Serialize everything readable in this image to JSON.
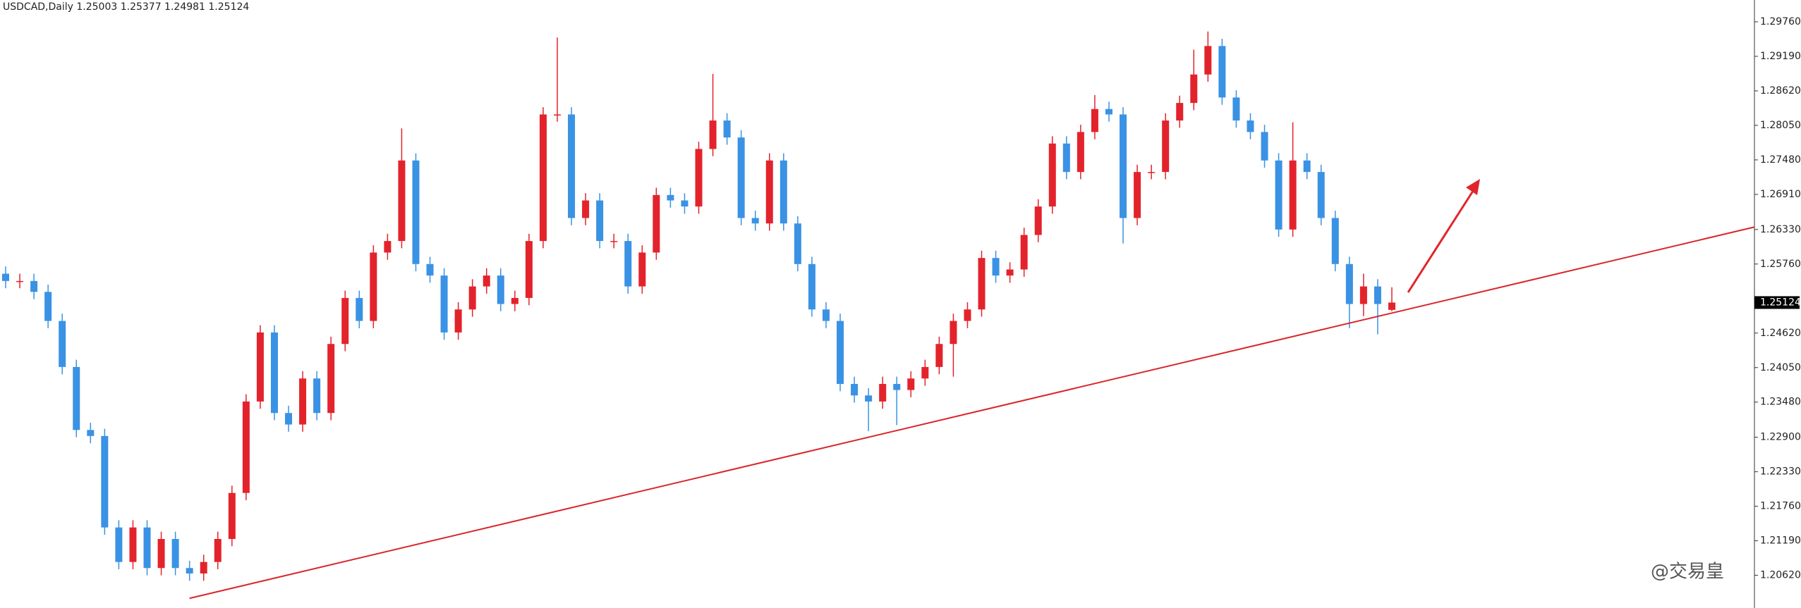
{
  "chart_data": {
    "type": "candlestick",
    "title": "USDCAD,Daily  1.25003 1.25377 1.24981 1.25124",
    "up_color": "#e3232b",
    "down_color": "#3a92e4",
    "trendline_color": "#d9262b",
    "open": [
      1.256,
      1.2548,
      1.2548,
      1.253,
      1.2482,
      1.2406,
      1.2302,
      1.2292,
      1.2141,
      1.2084,
      1.2141,
      1.2074,
      1.2122,
      1.2074,
      1.2065,
      1.2084,
      1.2122,
      1.2198,
      1.2349,
      1.2463,
      1.233,
      1.2311,
      1.2387,
      1.233,
      1.2444,
      1.252,
      1.2482,
      1.2595,
      1.2614,
      1.2747,
      1.2576,
      1.2557,
      1.2463,
      1.2501,
      1.2539,
      1.2557,
      1.251,
      1.252,
      1.2614,
      1.2823,
      1.2823,
      1.2652,
      1.2681,
      1.2614,
      1.2614,
      1.2539,
      1.2595,
      1.269,
      1.2681,
      1.2671,
      1.2766,
      1.2813,
      1.2785,
      1.2652,
      1.2643,
      1.2747,
      1.2643,
      1.2576,
      1.2501,
      1.2482,
      1.2378,
      1.2359,
      1.2349,
      1.2378,
      1.2368,
      1.2387,
      1.2406,
      1.2444,
      1.2482,
      1.2501,
      1.2586,
      1.2557,
      1.2567,
      1.2624,
      1.2671,
      1.2775,
      1.2728,
      1.2794,
      1.2832,
      1.2823,
      1.2652,
      1.2728,
      1.2728,
      1.2813,
      1.2842,
      1.2889,
      1.2936,
      1.2851,
      1.2813,
      1.2794,
      1.2747,
      1.2633,
      1.2747,
      1.2728,
      1.2652,
      1.2576,
      1.251,
      1.2539,
      1.25003
    ],
    "high": [
      1.2572,
      1.256,
      1.256,
      1.2542,
      1.2494,
      1.2418,
      1.2314,
      1.2304,
      1.2153,
      1.2153,
      1.2153,
      1.2134,
      1.2134,
      1.2086,
      1.2096,
      1.2134,
      1.221,
      1.2361,
      1.2475,
      1.2475,
      1.2342,
      1.2399,
      1.2399,
      1.2456,
      1.2532,
      1.2532,
      1.2607,
      1.2626,
      1.28,
      1.2759,
      1.2588,
      1.2569,
      1.2513,
      1.2551,
      1.2569,
      1.2569,
      1.2532,
      1.2626,
      1.2835,
      1.295,
      1.2835,
      1.2693,
      1.2693,
      1.2626,
      1.2626,
      1.2607,
      1.2702,
      1.2702,
      1.2693,
      1.2778,
      1.289,
      1.2825,
      1.2797,
      1.2664,
      1.2759,
      1.2759,
      1.2655,
      1.2588,
      1.2513,
      1.2494,
      1.239,
      1.2371,
      1.239,
      1.239,
      1.2399,
      1.2418,
      1.2456,
      1.2494,
      1.2513,
      1.2598,
      1.2598,
      1.2579,
      1.2636,
      1.2683,
      1.2787,
      1.2787,
      1.2806,
      1.2855,
      1.2844,
      1.2835,
      1.274,
      1.274,
      1.2825,
      1.2854,
      1.293,
      1.296,
      1.2948,
      1.2863,
      1.2825,
      1.2806,
      1.2759,
      1.281,
      1.2759,
      1.274,
      1.2664,
      1.2588,
      1.256,
      1.2551,
      1.25377
    ],
    "low": [
      1.2536,
      1.2536,
      1.2518,
      1.247,
      1.2394,
      1.229,
      1.228,
      1.2129,
      1.2072,
      1.2072,
      1.2062,
      1.2062,
      1.2062,
      1.2053,
      1.2053,
      1.2072,
      1.211,
      1.2186,
      1.2337,
      1.2318,
      1.2299,
      1.2299,
      1.2318,
      1.2318,
      1.2432,
      1.247,
      1.247,
      1.2583,
      1.2602,
      1.2564,
      1.2545,
      1.2451,
      1.2451,
      1.2489,
      1.2527,
      1.2498,
      1.2498,
      1.2508,
      1.2602,
      1.2811,
      1.264,
      1.264,
      1.2602,
      1.2602,
      1.2527,
      1.2527,
      1.2583,
      1.2669,
      1.2659,
      1.2659,
      1.2754,
      1.2773,
      1.264,
      1.2631,
      1.2631,
      1.2631,
      1.2564,
      1.2489,
      1.247,
      1.2366,
      1.2347,
      1.23,
      1.2337,
      1.231,
      1.2356,
      1.2375,
      1.2394,
      1.239,
      1.247,
      1.2489,
      1.2545,
      1.2545,
      1.2555,
      1.2612,
      1.2659,
      1.2716,
      1.2716,
      1.2782,
      1.2811,
      1.261,
      1.264,
      1.2716,
      1.2716,
      1.2801,
      1.283,
      1.2877,
      1.2839,
      1.2801,
      1.2782,
      1.2735,
      1.2621,
      1.2621,
      1.2716,
      1.264,
      1.2564,
      1.247,
      1.249,
      1.246,
      1.24981
    ],
    "close": [
      1.2548,
      1.2548,
      1.253,
      1.2482,
      1.2406,
      1.2302,
      1.2292,
      1.2141,
      1.2084,
      1.2141,
      1.2074,
      1.2122,
      1.2074,
      1.2065,
      1.2084,
      1.2122,
      1.2198,
      1.2349,
      1.2463,
      1.233,
      1.2311,
      1.2387,
      1.233,
      1.2444,
      1.252,
      1.2482,
      1.2595,
      1.2614,
      1.2747,
      1.2576,
      1.2557,
      1.2463,
      1.2501,
      1.2539,
      1.2557,
      1.251,
      1.252,
      1.2614,
      1.2823,
      1.2823,
      1.2652,
      1.2681,
      1.2614,
      1.2614,
      1.2539,
      1.2595,
      1.269,
      1.2681,
      1.2671,
      1.2766,
      1.2813,
      1.2785,
      1.2652,
      1.2643,
      1.2747,
      1.2643,
      1.2576,
      1.2501,
      1.2482,
      1.2378,
      1.2359,
      1.2349,
      1.2378,
      1.2368,
      1.2387,
      1.2406,
      1.2444,
      1.2482,
      1.2501,
      1.2586,
      1.2557,
      1.2567,
      1.2624,
      1.2671,
      1.2775,
      1.2728,
      1.2794,
      1.2832,
      1.2823,
      1.2652,
      1.2728,
      1.2728,
      1.2813,
      1.2842,
      1.2889,
      1.2936,
      1.2851,
      1.2813,
      1.2794,
      1.2747,
      1.2633,
      1.2747,
      1.2728,
      1.2652,
      1.2576,
      1.251,
      1.2539,
      1.251,
      1.25124
    ],
    "trendline": {
      "x": [
        13,
        61
      ],
      "y": [
        1.2024,
        1.229
      ]
    },
    "last_price": 1.25124,
    "ylim": [
      1.2008,
      1.3012
    ],
    "yticks": [
      {
        "value": 1.2976,
        "label": "1.29760"
      },
      {
        "value": 1.2919,
        "label": "1.29190"
      },
      {
        "value": 1.2862,
        "label": "1.28620"
      },
      {
        "value": 1.2805,
        "label": "1.28050"
      },
      {
        "value": 1.2748,
        "label": "1.27480"
      },
      {
        "value": 1.2691,
        "label": "1.26910"
      },
      {
        "value": 1.2633,
        "label": "1.26330"
      },
      {
        "value": 1.2576,
        "label": "1.25760"
      },
      {
        "value": 1.2462,
        "label": "1.24620"
      },
      {
        "value": 1.2405,
        "label": "1.24050"
      },
      {
        "value": 1.2348,
        "label": "1.23480"
      },
      {
        "value": 1.229,
        "label": "1.22900"
      },
      {
        "value": 1.2233,
        "label": "1.22330"
      },
      {
        "value": 1.2176,
        "label": "1.21760"
      },
      {
        "value": 1.2119,
        "label": "1.21190"
      },
      {
        "value": 1.2062,
        "label": "1.20620"
      }
    ],
    "watermark": "@交易皇"
  }
}
